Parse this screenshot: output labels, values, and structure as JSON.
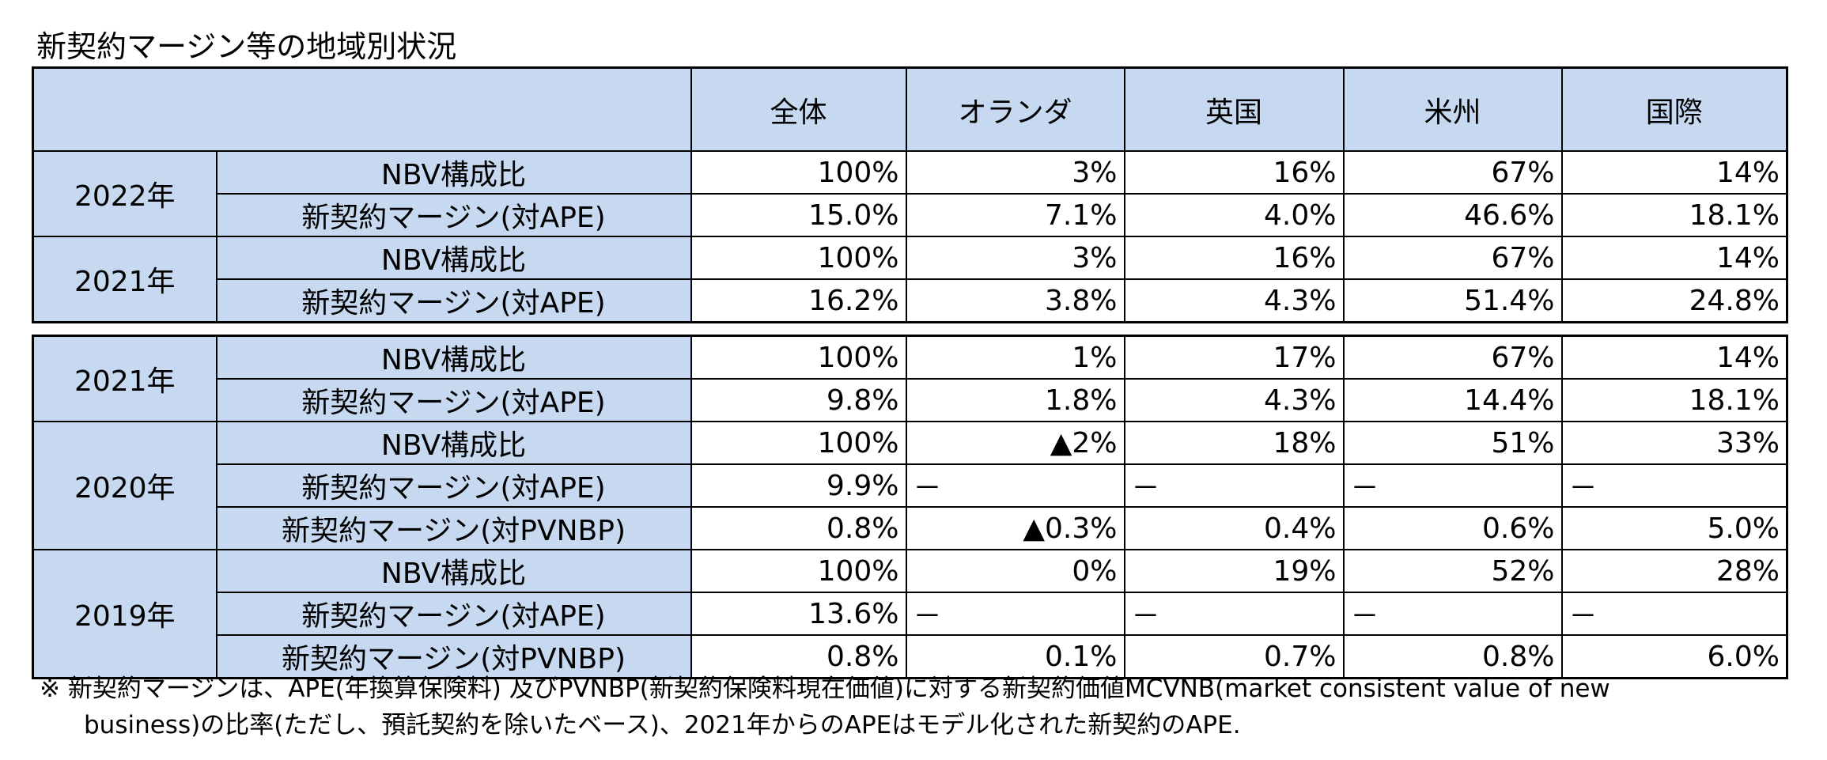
{
  "title": "新契約マージン等の地域別状況",
  "columns": [
    "全体",
    "オランダ",
    "英国",
    "米州",
    "国際"
  ],
  "table1": [
    {
      "year": "2022年",
      "rows": [
        {
          "metric": "NBV構成比",
          "values": [
            "100%",
            "3%",
            "16%",
            "67%",
            "14%"
          ]
        },
        {
          "metric": "新契約マージン(対APE)",
          "values": [
            "15.0%",
            "7.1%",
            "4.0%",
            "46.6%",
            "18.1%"
          ]
        }
      ]
    },
    {
      "year": "2021年",
      "rows": [
        {
          "metric": "NBV構成比",
          "values": [
            "100%",
            "3%",
            "16%",
            "67%",
            "14%"
          ]
        },
        {
          "metric": "新契約マージン(対APE)",
          "values": [
            "16.2%",
            "3.8%",
            "4.3%",
            "51.4%",
            "24.8%"
          ]
        }
      ]
    }
  ],
  "table2": [
    {
      "year": "2021年",
      "rows": [
        {
          "metric": "NBV構成比",
          "values": [
            "100%",
            "1%",
            "17%",
            "67%",
            "14%"
          ]
        },
        {
          "metric": "新契約マージン(対APE)",
          "values": [
            "9.8%",
            "1.8%",
            "4.3%",
            "14.4%",
            "18.1%"
          ]
        }
      ]
    },
    {
      "year": "2020年",
      "rows": [
        {
          "metric": "NBV構成比",
          "values": [
            "100%",
            "▲2%",
            "18%",
            "51%",
            "33%"
          ]
        },
        {
          "metric": "新契約マージン(対APE)",
          "values": [
            "9.9%",
            "－",
            "－",
            "－",
            "－"
          ]
        },
        {
          "metric": "新契約マージン(対PVNBP)",
          "values": [
            "0.8%",
            "▲0.3%",
            "0.4%",
            "0.6%",
            "5.0%"
          ]
        }
      ]
    },
    {
      "year": "2019年",
      "rows": [
        {
          "metric": "NBV構成比",
          "values": [
            "100%",
            "0%",
            "19%",
            "52%",
            "28%"
          ]
        },
        {
          "metric": "新契約マージン(対APE)",
          "values": [
            "13.6%",
            "－",
            "－",
            "－",
            "－"
          ]
        },
        {
          "metric": "新契約マージン(対PVNBP)",
          "values": [
            "0.8%",
            "0.1%",
            "0.7%",
            "0.8%",
            "6.0%"
          ]
        }
      ]
    }
  ],
  "note": {
    "line1": "※ 新契約マージンは、APE(年換算保険料) 及びPVNBP(新契約保険料現在価値)に対する新契約価値MCVNB(market consistent value of new",
    "line2": "business)の比率(ただし、預託契約を除いたベース)、2021年からのAPEはモデル化された新契約のAPE."
  }
}
